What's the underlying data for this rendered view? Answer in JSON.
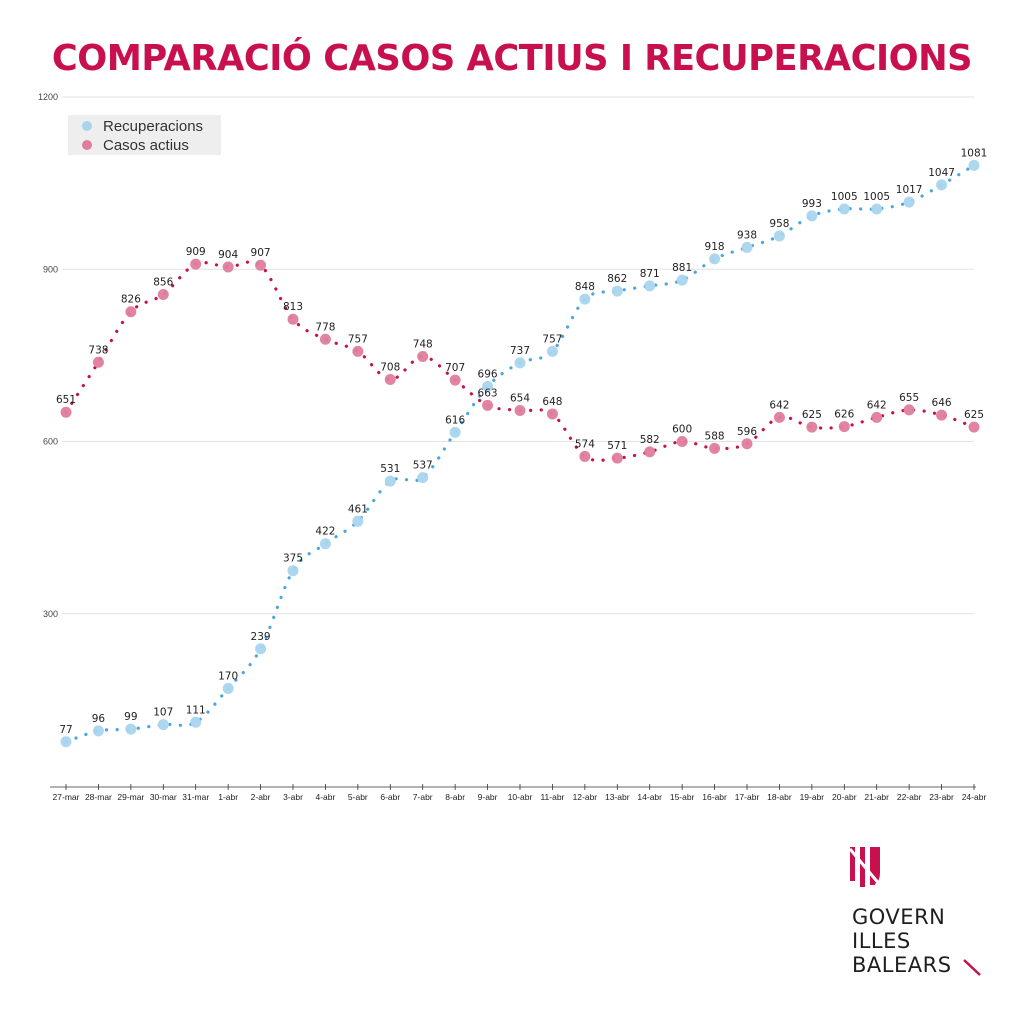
{
  "header": {
    "title": "COMPARACIÓ CASOS ACTIUS I RECUPERACIONS"
  },
  "colors": {
    "title": "#c8104f",
    "recuperacions_marker": "#a9d4ee",
    "recuperacions_line": "#4aa6de",
    "casos_marker": "#df7d9d",
    "casos_line": "#c8104f",
    "grid": "#e2e2e2",
    "legend_bg": "#eeeeee"
  },
  "chart_data": {
    "type": "line",
    "title": "COMPARACIÓ CASOS ACTIUS I RECUPERACIONS",
    "xlabel": "",
    "ylabel": "",
    "ylim": [
      0,
      1200
    ],
    "yticks": [
      300,
      600,
      900,
      1200
    ],
    "grid": true,
    "legend_position": "top-left",
    "categories": [
      "27-mar",
      "28-mar",
      "29-mar",
      "30-mar",
      "31-mar",
      "1-abr",
      "2-abr",
      "3-abr",
      "4-abr",
      "5-abr",
      "6-abr",
      "7-abr",
      "8-abr",
      "9-abr",
      "10-abr",
      "11-abr",
      "12-abr",
      "13-abr",
      "14-abr",
      "15-abr",
      "16-abr",
      "17-abr",
      "18-abr",
      "19-abr",
      "20-abr",
      "21-abr",
      "22-abr",
      "23-abr",
      "24-abr"
    ],
    "series": [
      {
        "name": "Recuperacions",
        "values": [
          77,
          96,
          99,
          107,
          111,
          170,
          239,
          375,
          422,
          461,
          531,
          537,
          616,
          696,
          737,
          757,
          848,
          862,
          871,
          881,
          918,
          938,
          958,
          993,
          1005,
          1005,
          1017,
          1047,
          1081
        ]
      },
      {
        "name": "Casos actius",
        "values": [
          651,
          738,
          826,
          856,
          909,
          904,
          907,
          813,
          778,
          757,
          708,
          748,
          707,
          663,
          654,
          648,
          574,
          571,
          582,
          600,
          588,
          596,
          642,
          625,
          626,
          642,
          655,
          646,
          625
        ]
      }
    ]
  },
  "logo": {
    "lines": [
      "GOVERN",
      "ILLES",
      "BALEARS"
    ]
  }
}
